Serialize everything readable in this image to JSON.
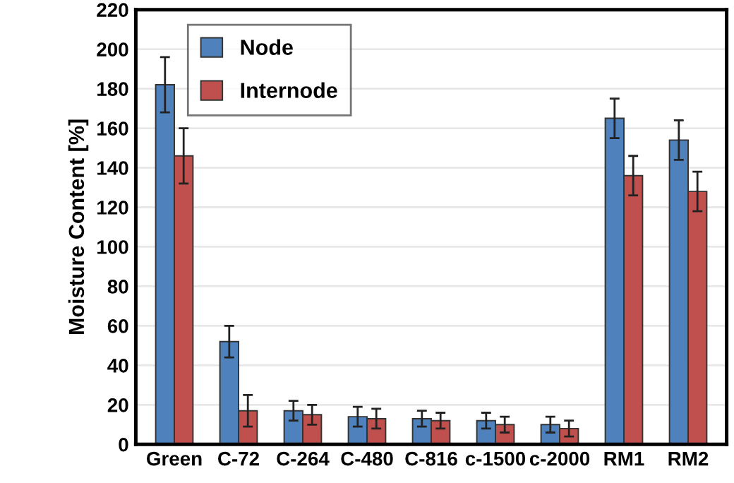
{
  "chart_data": {
    "type": "bar",
    "ylabel": "Moisture Content [%]",
    "categories": [
      "Green",
      "C-72",
      "C-264",
      "C-480",
      "C-816",
      "c-1500",
      "c-2000",
      "RM1",
      "RM2"
    ],
    "series": [
      {
        "name": "Node",
        "color": "#4f81bd",
        "values": [
          182,
          52,
          17,
          14,
          13,
          12,
          10,
          165,
          154
        ],
        "errors": [
          14,
          8,
          5,
          5,
          4,
          4,
          4,
          10,
          10
        ]
      },
      {
        "name": "Internode",
        "color": "#c0504d",
        "values": [
          146,
          17,
          15,
          13,
          12,
          10,
          8,
          136,
          128
        ],
        "errors": [
          14,
          8,
          5,
          5,
          4,
          4,
          4,
          10,
          10
        ]
      }
    ],
    "ylim": [
      0,
      220
    ],
    "yticks": [
      0,
      20,
      40,
      60,
      80,
      100,
      120,
      140,
      160,
      180,
      200,
      220
    ],
    "grid": "y",
    "legend": "top left"
  }
}
